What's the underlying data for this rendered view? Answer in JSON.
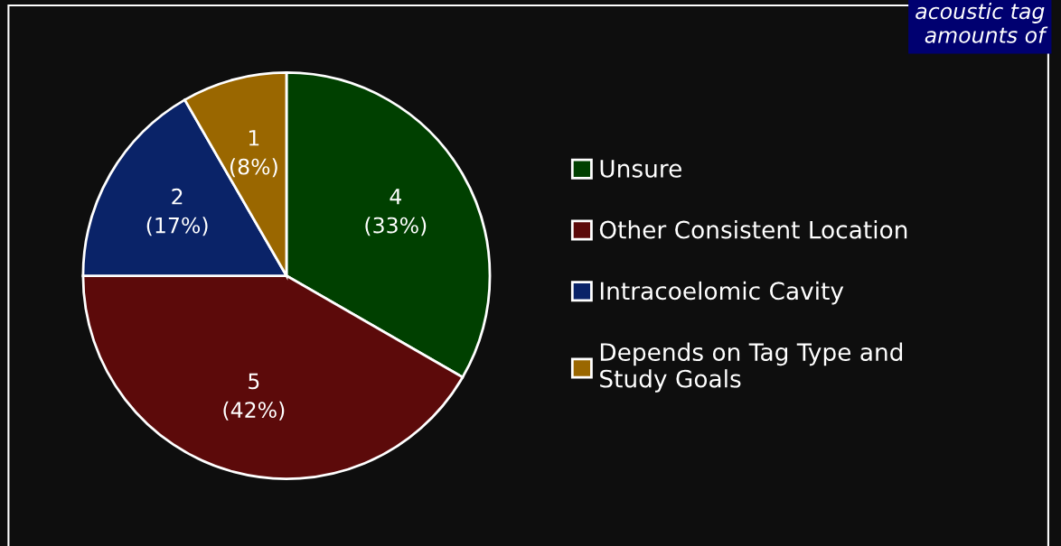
{
  "chart_data": {
    "type": "pie",
    "categories": [
      "Unsure",
      "Other Consistent Location",
      "Intracoelomic Cavity",
      "Depends on Tag Type and\nStudy Goals"
    ],
    "values": [
      4,
      5,
      2,
      1
    ],
    "value_labels": [
      "4\n(33%)",
      "5\n(42%)",
      "2\n(17%)",
      "1\n(8%)"
    ],
    "colors": [
      "#004000",
      "#5c0a0a",
      "#0a2368",
      "#9a6700"
    ],
    "legend": "right",
    "annotations": [
      "acoustic tag\namounts of"
    ]
  }
}
